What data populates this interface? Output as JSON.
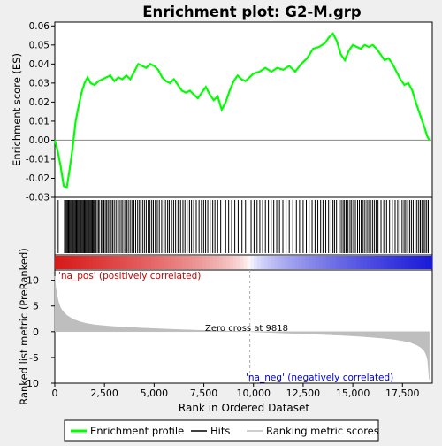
{
  "chart_data": {
    "type": "line",
    "title": "Enrichment plot: G2-M.grp",
    "top_panel": {
      "ylabel": "Enrichment score (ES)",
      "ylim": [
        -0.03,
        0.062
      ],
      "yticks": [
        "0.06",
        "0.05",
        "0.04",
        "0.03",
        "0.02",
        "0.01",
        "0.00",
        "-0.01",
        "-0.02",
        "-0.03"
      ],
      "ytick_values": [
        0.06,
        0.05,
        0.04,
        0.03,
        0.02,
        0.01,
        0.0,
        -0.01,
        -0.02,
        -0.03
      ],
      "series_color": "#00ff00",
      "es_curve": {
        "x": [
          0,
          150,
          300,
          450,
          600,
          750,
          900,
          1050,
          1200,
          1350,
          1500,
          1650,
          1800,
          2000,
          2200,
          2400,
          2600,
          2800,
          3000,
          3200,
          3400,
          3600,
          3800,
          4000,
          4200,
          4400,
          4600,
          4800,
          5000,
          5200,
          5400,
          5600,
          5800,
          6000,
          6200,
          6400,
          6600,
          6800,
          7000,
          7200,
          7400,
          7600,
          7800,
          8000,
          8200,
          8400,
          8600,
          8800,
          9000,
          9200,
          9400,
          9600,
          9800,
          10000,
          10300,
          10600,
          10900,
          11200,
          11500,
          11800,
          12100,
          12400,
          12700,
          13000,
          13300,
          13600,
          13800,
          14000,
          14200,
          14400,
          14600,
          14800,
          15000,
          15200,
          15400,
          15600,
          15800,
          16000,
          16200,
          16400,
          16600,
          16800,
          17000,
          17200,
          17400,
          17600,
          17800,
          18000,
          18200,
          18400,
          18600,
          18750,
          18850
        ],
        "y": [
          0.0,
          -0.006,
          -0.014,
          -0.024,
          -0.025,
          -0.015,
          -0.004,
          0.01,
          0.018,
          0.025,
          0.03,
          0.033,
          0.03,
          0.029,
          0.031,
          0.032,
          0.033,
          0.034,
          0.031,
          0.033,
          0.032,
          0.034,
          0.032,
          0.036,
          0.04,
          0.039,
          0.038,
          0.04,
          0.039,
          0.037,
          0.033,
          0.031,
          0.03,
          0.032,
          0.029,
          0.026,
          0.025,
          0.026,
          0.024,
          0.022,
          0.025,
          0.028,
          0.024,
          0.021,
          0.023,
          0.016,
          0.02,
          0.026,
          0.031,
          0.034,
          0.032,
          0.031,
          0.033,
          0.035,
          0.036,
          0.038,
          0.036,
          0.038,
          0.037,
          0.039,
          0.036,
          0.04,
          0.043,
          0.048,
          0.049,
          0.051,
          0.054,
          0.056,
          0.052,
          0.045,
          0.042,
          0.047,
          0.05,
          0.049,
          0.048,
          0.05,
          0.049,
          0.05,
          0.048,
          0.045,
          0.042,
          0.043,
          0.04,
          0.036,
          0.032,
          0.029,
          0.03,
          0.026,
          0.019,
          0.013,
          0.007,
          0.002,
          0.0
        ]
      }
    },
    "hits_panel": {
      "legend_label": "Hits",
      "hit_ranks": [
        110,
        170,
        490,
        540,
        590,
        640,
        690,
        740,
        790,
        840,
        890,
        940,
        990,
        1040,
        1090,
        1140,
        1190,
        1240,
        1290,
        1340,
        1390,
        1440,
        1490,
        1540,
        1590,
        1640,
        1690,
        1740,
        1790,
        1840,
        1890,
        1940,
        1990,
        2040,
        2090,
        2180,
        2230,
        2330,
        2400,
        2470,
        2540,
        2610,
        2680,
        2760,
        2840,
        2910,
        2990,
        3080,
        3170,
        3250,
        3340,
        3420,
        3520,
        3620,
        3700,
        3790,
        3880,
        3980,
        4070,
        4170,
        4260,
        4330,
        4420,
        4510,
        4600,
        4700,
        4790,
        4880,
        4960,
        5060,
        5160,
        5260,
        5380,
        5490,
        5570,
        5680,
        5760,
        5880,
        5980,
        6080,
        6200,
        6330,
        6450,
        6550,
        6660,
        6780,
        6880,
        6990,
        7120,
        7260,
        7380,
        7490,
        7590,
        7700,
        7820,
        7950,
        8060,
        8200,
        8350,
        8600,
        8750,
        8900,
        9060,
        9230,
        9420,
        9600,
        9880,
        10030,
        10180,
        10320,
        10460,
        10600,
        10750,
        10890,
        11020,
        11170,
        11310,
        11480,
        11640,
        11800,
        11980,
        12160,
        12320,
        12500,
        12660,
        12800,
        12950,
        13100,
        13240,
        13380,
        13500,
        13640,
        13780,
        13900,
        14000,
        14080,
        14180,
        14320,
        14420,
        14510,
        14580,
        14660,
        14760,
        14860,
        14940,
        15040,
        15130,
        15240,
        15330,
        15420,
        15520,
        15610,
        15710,
        15800,
        15890,
        15990,
        16080,
        16170,
        16270,
        16420,
        16560,
        16700,
        16850,
        16990,
        17130,
        17260,
        17370,
        17480,
        17580,
        17660,
        17760,
        17860,
        17950,
        18040,
        18140,
        18230,
        18320,
        18400,
        18480,
        18560,
        18640,
        18720,
        18800
      ]
    },
    "ranked_panel": {
      "ylabel": "Ranked list metric (PreRanked)",
      "xlabel": "Rank in Ordered Dataset",
      "ylim": [
        -10,
        12
      ],
      "yticks": [
        "10",
        "5",
        "0",
        "-5",
        "-10"
      ],
      "ytick_values": [
        10,
        5,
        0,
        -5,
        -10
      ],
      "xlim": [
        0,
        19000
      ],
      "xticks": [
        "0",
        "2,500",
        "5,000",
        "7,500",
        "10,000",
        "12,500",
        "15,000",
        "17,500"
      ],
      "xtick_values": [
        0,
        2500,
        5000,
        7500,
        10000,
        12500,
        15000,
        17500
      ],
      "fill_color": "#bebebe",
      "metric_curve": {
        "x": [
          0,
          50,
          120,
          200,
          300,
          450,
          600,
          800,
          1000,
          1300,
          1600,
          2000,
          2500,
          3000,
          3500,
          4000,
          5000,
          6000,
          7000,
          8000,
          9000,
          9818,
          10500,
          11500,
          12500,
          13500,
          14500,
          15500,
          16500,
          17000,
          17500,
          17900,
          18200,
          18400,
          18550,
          18650,
          18720,
          18770,
          18810,
          18850
        ],
        "y": [
          10.8,
          8.6,
          6.9,
          5.6,
          4.6,
          3.8,
          3.2,
          2.7,
          2.3,
          1.9,
          1.6,
          1.35,
          1.15,
          1.0,
          0.88,
          0.78,
          0.6,
          0.45,
          0.32,
          0.2,
          0.1,
          0.0,
          -0.12,
          -0.25,
          -0.4,
          -0.55,
          -0.72,
          -0.95,
          -1.25,
          -1.45,
          -1.75,
          -2.1,
          -2.55,
          -3.0,
          -3.5,
          -4.1,
          -4.8,
          -5.6,
          -7.5,
          -9.3
        ]
      },
      "annotations": {
        "pos_label": "'na_pos' (positively correlated)",
        "neg_label": "'na_neg' (negatively correlated)",
        "zero_cross": "Zero cross at 9818",
        "zero_cross_rank": 9818,
        "pos_color": "#cc0000",
        "neg_color": "#0000cc"
      }
    },
    "legend": {
      "placement": "bottom",
      "items": [
        {
          "label": "Enrichment profile",
          "color": "#00ff00"
        },
        {
          "label": "Hits",
          "color": "#000000"
        },
        {
          "label": "Ranking metric scores",
          "color": "#bebebe"
        }
      ]
    }
  }
}
